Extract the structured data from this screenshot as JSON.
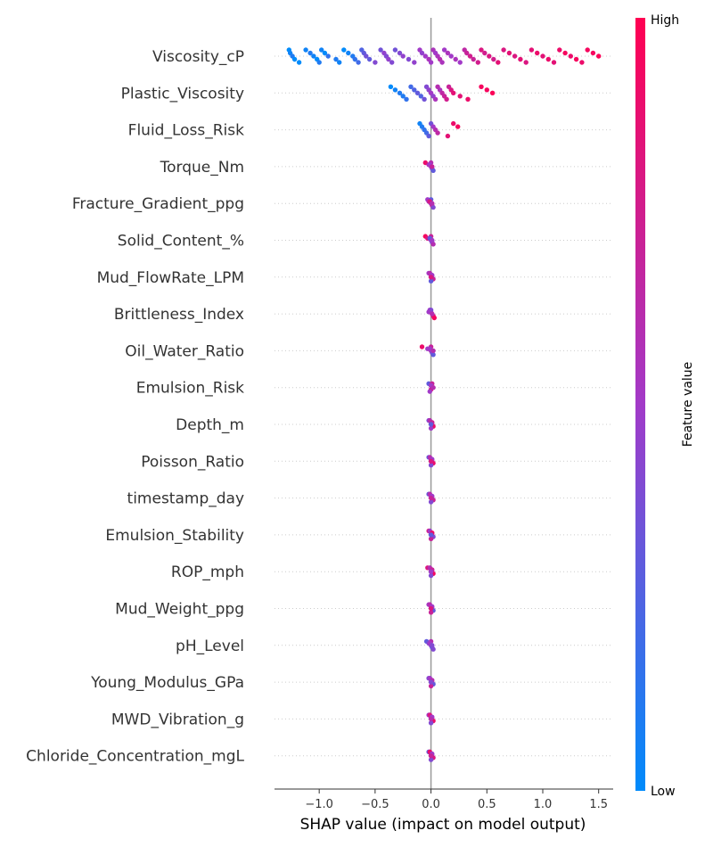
{
  "chart_data": {
    "type": "scatter",
    "subtype": "shap-beeswarm",
    "title": "",
    "xlabel": "SHAP value (impact on model output)",
    "ylabel": "",
    "xlim": [
      -1.4,
      1.63
    ],
    "x_ticks": [
      -1.0,
      -0.5,
      0.0,
      0.5,
      1.0,
      1.5
    ],
    "x_tick_labels": [
      "−1.0",
      "−0.5",
      "0.0",
      "0.5",
      "1.0",
      "1.5"
    ],
    "grid": false,
    "features": [
      "Viscosity_cP",
      "Plastic_Viscosity",
      "Fluid_Loss_Risk",
      "Torque_Nm",
      "Fracture_Gradient_ppg",
      "Solid_Content_%",
      "Mud_FlowRate_LPM",
      "Brittleness_Index",
      "Oil_Water_Ratio",
      "Emulsion_Risk",
      "Depth_m",
      "Poisson_Ratio",
      "timestamp_day",
      "Emulsion_Stability",
      "ROP_mph",
      "Mud_Weight_ppg",
      "pH_Level",
      "Young_Modulus_GPa",
      "MWD_Vibration_g",
      "Chloride_Concentration_mgL"
    ],
    "points": [
      [
        [
          -1.27,
          0.0
        ],
        [
          -1.26,
          0.05
        ],
        [
          -1.24,
          0.1
        ],
        [
          -1.22,
          0.0
        ],
        [
          -1.18,
          0.0
        ],
        [
          -1.12,
          0.05
        ],
        [
          -1.08,
          0.1
        ],
        [
          -1.05,
          0.05
        ],
        [
          -1.02,
          0.0
        ],
        [
          -1.0,
          0.1
        ],
        [
          -0.98,
          0.05
        ],
        [
          -0.95,
          0.0
        ],
        [
          -0.92,
          0.15
        ],
        [
          -0.85,
          0.1
        ],
        [
          -0.82,
          0.05
        ],
        [
          -0.78,
          0.0
        ],
        [
          -0.74,
          0.05
        ],
        [
          -0.7,
          0.1
        ],
        [
          -0.68,
          0.15
        ],
        [
          -0.65,
          0.2
        ],
        [
          -0.62,
          0.25
        ],
        [
          -0.6,
          0.3
        ],
        [
          -0.58,
          0.35
        ],
        [
          -0.55,
          0.3
        ],
        [
          -0.5,
          0.4
        ],
        [
          -0.45,
          0.35
        ],
        [
          -0.42,
          0.45
        ],
        [
          -0.4,
          0.4
        ],
        [
          -0.38,
          0.45
        ],
        [
          -0.35,
          0.4
        ],
        [
          -0.32,
          0.35
        ],
        [
          -0.28,
          0.4
        ],
        [
          -0.25,
          0.45
        ],
        [
          -0.2,
          0.4
        ],
        [
          -0.15,
          0.45
        ],
        [
          -0.1,
          0.5
        ],
        [
          -0.08,
          0.45
        ],
        [
          -0.05,
          0.5
        ],
        [
          -0.02,
          0.55
        ],
        [
          0.0,
          0.5
        ],
        [
          0.02,
          0.55
        ],
        [
          0.04,
          0.5
        ],
        [
          0.06,
          0.55
        ],
        [
          0.08,
          0.6
        ],
        [
          0.1,
          0.55
        ],
        [
          0.12,
          0.5
        ],
        [
          0.15,
          0.55
        ],
        [
          0.18,
          0.5
        ],
        [
          0.22,
          0.55
        ],
        [
          0.26,
          0.5
        ],
        [
          0.3,
          0.65
        ],
        [
          0.32,
          0.7
        ],
        [
          0.35,
          0.75
        ],
        [
          0.38,
          0.7
        ],
        [
          0.42,
          0.75
        ],
        [
          0.45,
          0.8
        ],
        [
          0.48,
          0.75
        ],
        [
          0.52,
          0.8
        ],
        [
          0.56,
          0.75
        ],
        [
          0.6,
          0.85
        ],
        [
          0.65,
          0.8
        ],
        [
          0.7,
          0.85
        ],
        [
          0.75,
          0.8
        ],
        [
          0.8,
          0.85
        ],
        [
          0.85,
          0.8
        ],
        [
          0.9,
          0.85
        ],
        [
          0.95,
          0.9
        ],
        [
          1.0,
          0.85
        ],
        [
          1.05,
          0.9
        ],
        [
          1.1,
          0.85
        ],
        [
          1.15,
          0.9
        ],
        [
          1.2,
          0.95
        ],
        [
          1.25,
          0.9
        ],
        [
          1.3,
          0.95
        ],
        [
          1.35,
          0.9
        ],
        [
          1.4,
          0.95
        ],
        [
          1.45,
          0.95
        ],
        [
          1.5,
          0.98
        ]
      ],
      [
        [
          -0.36,
          0.0
        ],
        [
          -0.32,
          0.05
        ],
        [
          -0.28,
          0.1
        ],
        [
          -0.25,
          0.1
        ],
        [
          -0.22,
          0.15
        ],
        [
          -0.18,
          0.2
        ],
        [
          -0.15,
          0.25
        ],
        [
          -0.12,
          0.3
        ],
        [
          -0.09,
          0.25
        ],
        [
          -0.06,
          0.35
        ],
        [
          -0.04,
          0.4
        ],
        [
          -0.02,
          0.45
        ],
        [
          0.0,
          0.5
        ],
        [
          0.02,
          0.45
        ],
        [
          0.04,
          0.55
        ],
        [
          0.06,
          0.6
        ],
        [
          0.08,
          0.55
        ],
        [
          0.1,
          0.65
        ],
        [
          0.12,
          0.7
        ],
        [
          0.14,
          0.75
        ],
        [
          0.16,
          0.7
        ],
        [
          0.18,
          0.8
        ],
        [
          0.2,
          0.85
        ],
        [
          0.26,
          0.85
        ],
        [
          0.33,
          0.9
        ],
        [
          0.45,
          0.95
        ],
        [
          0.5,
          0.95
        ],
        [
          0.55,
          0.98
        ]
      ],
      [
        [
          -0.1,
          0.05
        ],
        [
          -0.08,
          0.1
        ],
        [
          -0.06,
          0.15
        ],
        [
          -0.04,
          0.2
        ],
        [
          -0.02,
          0.3
        ],
        [
          0.0,
          0.35
        ],
        [
          0.02,
          0.5
        ],
        [
          0.04,
          0.6
        ],
        [
          0.06,
          0.65
        ],
        [
          0.15,
          0.85
        ],
        [
          0.2,
          0.9
        ],
        [
          0.24,
          0.95
        ]
      ],
      [
        [
          -0.05,
          0.9
        ],
        [
          -0.02,
          0.6
        ],
        [
          0.0,
          0.5
        ],
        [
          0.01,
          0.4
        ],
        [
          0.02,
          0.3
        ],
        [
          0.0,
          0.6
        ],
        [
          -0.01,
          0.5
        ],
        [
          0.01,
          0.7
        ]
      ],
      [
        [
          -0.03,
          0.5
        ],
        [
          -0.02,
          0.6
        ],
        [
          0.0,
          0.5
        ],
        [
          0.01,
          0.7
        ],
        [
          0.02,
          0.4
        ],
        [
          0.0,
          0.3
        ],
        [
          -0.01,
          0.8
        ],
        [
          0.01,
          0.6
        ]
      ],
      [
        [
          -0.05,
          0.95
        ],
        [
          -0.03,
          0.8
        ],
        [
          0.0,
          0.5
        ],
        [
          0.01,
          0.4
        ],
        [
          0.02,
          0.6
        ],
        [
          0.0,
          0.7
        ],
        [
          -0.01,
          0.3
        ],
        [
          0.01,
          0.5
        ]
      ],
      [
        [
          -0.02,
          0.5
        ],
        [
          0.0,
          0.6
        ],
        [
          0.01,
          0.4
        ],
        [
          0.02,
          0.7
        ],
        [
          0.0,
          0.3
        ],
        [
          -0.01,
          0.6
        ],
        [
          0.01,
          0.5
        ],
        [
          0.0,
          0.8
        ]
      ],
      [
        [
          -0.01,
          0.5
        ],
        [
          0.0,
          0.6
        ],
        [
          0.01,
          0.7
        ],
        [
          0.02,
          0.8
        ],
        [
          0.03,
          0.95
        ],
        [
          0.0,
          0.4
        ],
        [
          -0.02,
          0.5
        ],
        [
          0.01,
          0.6
        ]
      ],
      [
        [
          -0.08,
          0.9
        ],
        [
          -0.03,
          0.5
        ],
        [
          0.0,
          0.6
        ],
        [
          0.01,
          0.4
        ],
        [
          0.02,
          0.3
        ],
        [
          0.0,
          0.7
        ],
        [
          -0.01,
          0.5
        ],
        [
          0.02,
          0.6
        ]
      ],
      [
        [
          -0.02,
          0.3
        ],
        [
          0.0,
          0.6
        ],
        [
          0.01,
          0.9
        ],
        [
          0.0,
          0.8
        ],
        [
          -0.01,
          0.5
        ],
        [
          0.01,
          0.7
        ],
        [
          0.0,
          0.5
        ],
        [
          0.02,
          0.6
        ]
      ],
      [
        [
          -0.02,
          0.4
        ],
        [
          0.0,
          0.6
        ],
        [
          0.01,
          0.8
        ],
        [
          0.02,
          0.9
        ],
        [
          0.0,
          0.5
        ],
        [
          -0.01,
          0.6
        ],
        [
          0.01,
          0.7
        ],
        [
          0.0,
          0.3
        ]
      ],
      [
        [
          -0.02,
          0.3
        ],
        [
          0.0,
          0.5
        ],
        [
          0.01,
          0.7
        ],
        [
          0.02,
          0.9
        ],
        [
          0.0,
          0.4
        ],
        [
          -0.01,
          0.6
        ],
        [
          0.01,
          0.5
        ],
        [
          0.0,
          0.8
        ]
      ],
      [
        [
          -0.02,
          0.3
        ],
        [
          0.0,
          0.5
        ],
        [
          0.01,
          0.6
        ],
        [
          0.02,
          0.7
        ],
        [
          0.0,
          0.4
        ],
        [
          -0.01,
          0.6
        ],
        [
          0.01,
          0.5
        ],
        [
          0.0,
          0.7
        ]
      ],
      [
        [
          -0.02,
          0.8
        ],
        [
          0.0,
          0.5
        ],
        [
          0.01,
          0.6
        ],
        [
          0.02,
          0.4
        ],
        [
          0.0,
          0.7
        ],
        [
          -0.01,
          0.5
        ],
        [
          0.01,
          0.9
        ],
        [
          0.0,
          0.3
        ]
      ],
      [
        [
          -0.03,
          0.8
        ],
        [
          0.0,
          0.5
        ],
        [
          0.01,
          0.6
        ],
        [
          0.02,
          0.95
        ],
        [
          0.0,
          0.4
        ],
        [
          -0.01,
          0.6
        ],
        [
          0.01,
          0.7
        ],
        [
          0.0,
          0.5
        ]
      ],
      [
        [
          -0.02,
          0.5
        ],
        [
          0.0,
          0.6
        ],
        [
          0.01,
          0.4
        ],
        [
          0.02,
          0.3
        ],
        [
          0.0,
          0.7
        ],
        [
          -0.01,
          0.6
        ],
        [
          0.01,
          0.5
        ],
        [
          0.0,
          0.8
        ]
      ],
      [
        [
          -0.04,
          0.3
        ],
        [
          -0.02,
          0.4
        ],
        [
          0.0,
          0.5
        ],
        [
          0.01,
          0.3
        ],
        [
          0.02,
          0.4
        ],
        [
          0.0,
          0.6
        ],
        [
          -0.01,
          0.5
        ],
        [
          0.01,
          0.4
        ]
      ],
      [
        [
          -0.02,
          0.4
        ],
        [
          0.0,
          0.5
        ],
        [
          0.01,
          0.6
        ],
        [
          0.02,
          0.3
        ],
        [
          0.0,
          0.7
        ],
        [
          -0.01,
          0.5
        ],
        [
          0.01,
          0.6
        ],
        [
          0.0,
          0.4
        ]
      ],
      [
        [
          -0.02,
          0.5
        ],
        [
          0.0,
          0.6
        ],
        [
          0.01,
          0.7
        ],
        [
          0.02,
          0.9
        ],
        [
          0.0,
          0.4
        ],
        [
          -0.01,
          0.8
        ],
        [
          0.01,
          0.5
        ],
        [
          0.0,
          0.6
        ]
      ],
      [
        [
          -0.02,
          0.3
        ],
        [
          0.0,
          0.5
        ],
        [
          0.01,
          0.6
        ],
        [
          0.02,
          0.8
        ],
        [
          0.0,
          0.4
        ],
        [
          -0.01,
          0.9
        ],
        [
          0.01,
          0.5
        ],
        [
          0.0,
          0.7
        ]
      ]
    ],
    "colorbar": {
      "label": "Feature value",
      "high_label": "High",
      "low_label": "Low",
      "low_color": "#008bfb",
      "mid_color": "#a23ac8",
      "high_color": "#ff0052"
    },
    "zero_line_color": "#999999",
    "row_line_color": "#cccccc"
  }
}
